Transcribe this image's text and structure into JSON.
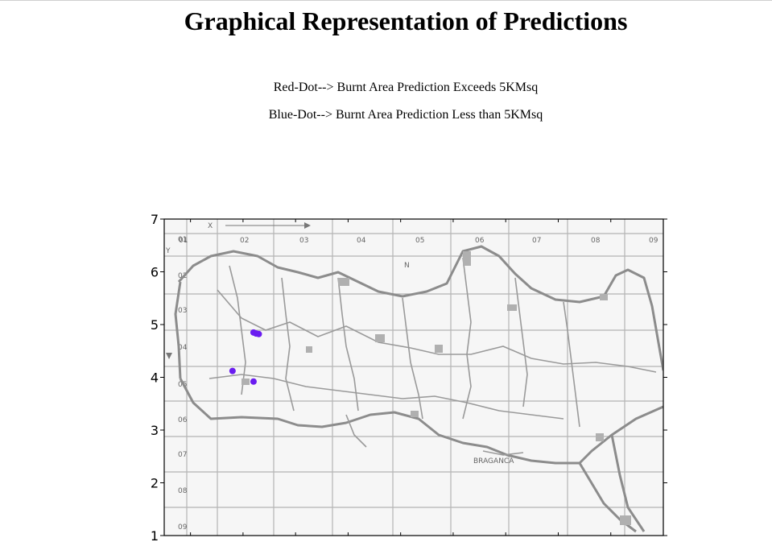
{
  "page": {
    "title": "Graphical Representation of Predictions",
    "legend_red": "Red-Dot--> Burnt Area Prediction Exceeds 5KMsq",
    "legend_blue": "Blue-Dot--> Burnt Area Prediction Less than 5KMsq"
  },
  "colors": {
    "blue_dot": "#6a1cf0",
    "red_dot": "#e00000"
  },
  "map": {
    "column_labels": [
      "01",
      "02",
      "03",
      "04",
      "05",
      "06",
      "07",
      "08",
      "09"
    ],
    "row_labels": [
      "01",
      "02",
      "03",
      "04",
      "05",
      "06",
      "07",
      "08",
      "09"
    ],
    "x_axis_letter": "X",
    "y_axis_letter": "Y",
    "town_label": "BRAGANCA",
    "north_letter": "N"
  },
  "chart_data": {
    "type": "scatter",
    "title": "",
    "xlabel": "",
    "ylabel": "",
    "xlim": [
      0.5,
      10
    ],
    "ylim": [
      1,
      7
    ],
    "x_ticks": [
      1,
      2,
      3,
      4,
      5,
      6,
      7,
      8,
      9
    ],
    "y_ticks": [
      1,
      2,
      3,
      4,
      5,
      6,
      7
    ],
    "y_tick_labels": [
      "1",
      "2",
      "3",
      "4",
      "5",
      "6",
      "7"
    ],
    "grid": false,
    "background": "Montesinho park map image",
    "series": [
      {
        "color": "blue",
        "points": [
          {
            "x": 2.2,
            "y": 4.85
          },
          {
            "x": 2.25,
            "y": 4.83
          },
          {
            "x": 2.3,
            "y": 4.82
          },
          {
            "x": 1.8,
            "y": 4.12
          },
          {
            "x": 2.2,
            "y": 3.92
          }
        ]
      }
    ]
  }
}
